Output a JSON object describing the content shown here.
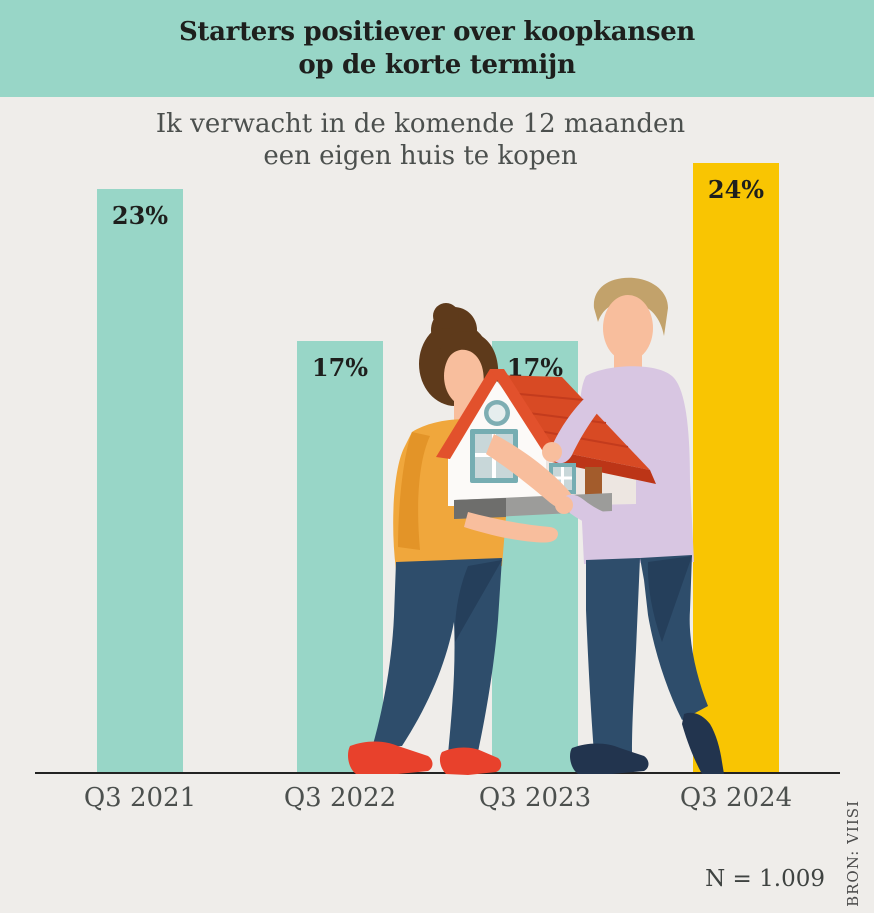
{
  "header": {
    "title_line1": "Starters positiever over koopkansen",
    "title_line2": "op de korte termijn"
  },
  "subtitle": {
    "line1": "Ik verwacht in de komende 12 maanden",
    "line2": "een eigen huis te kopen"
  },
  "chart_data": {
    "type": "bar",
    "title": "Starters positiever over koopkansen op de korte termijn",
    "subtitle": "Ik verwacht in de komende 12 maanden een eigen huis te kopen",
    "categories": [
      "Q3 2021",
      "Q3 2022",
      "Q3 2023",
      "Q3 2024"
    ],
    "values": [
      23,
      17,
      17,
      24
    ],
    "value_labels": [
      "23%",
      "17%",
      "17%",
      "24%"
    ],
    "unit": "%",
    "ylim": [
      0,
      24
    ],
    "bar_colors": [
      "#98d6c7",
      "#98d6c7",
      "#98d6c7",
      "#f9c502"
    ],
    "highlight_index": 3,
    "gridlines": false,
    "legend": false,
    "value_label_position": "inside-top",
    "baseline_axis": "x",
    "sample_size_note": "N = 1.009",
    "source_note": "BRON: VIISI"
  },
  "footer": {
    "sample_note": "N = 1.009",
    "source": "BRON: VIISI"
  },
  "colors": {
    "header_band": "#98d6c7",
    "background": "#efedea",
    "bar_teal": "#98d6c7",
    "bar_yellow": "#f9c502",
    "title_text": "#1e1f1d",
    "subtitle_text": "#4c504e",
    "axis_line": "#232323"
  },
  "illustration": {
    "name": "couple-holding-house-illustration"
  }
}
